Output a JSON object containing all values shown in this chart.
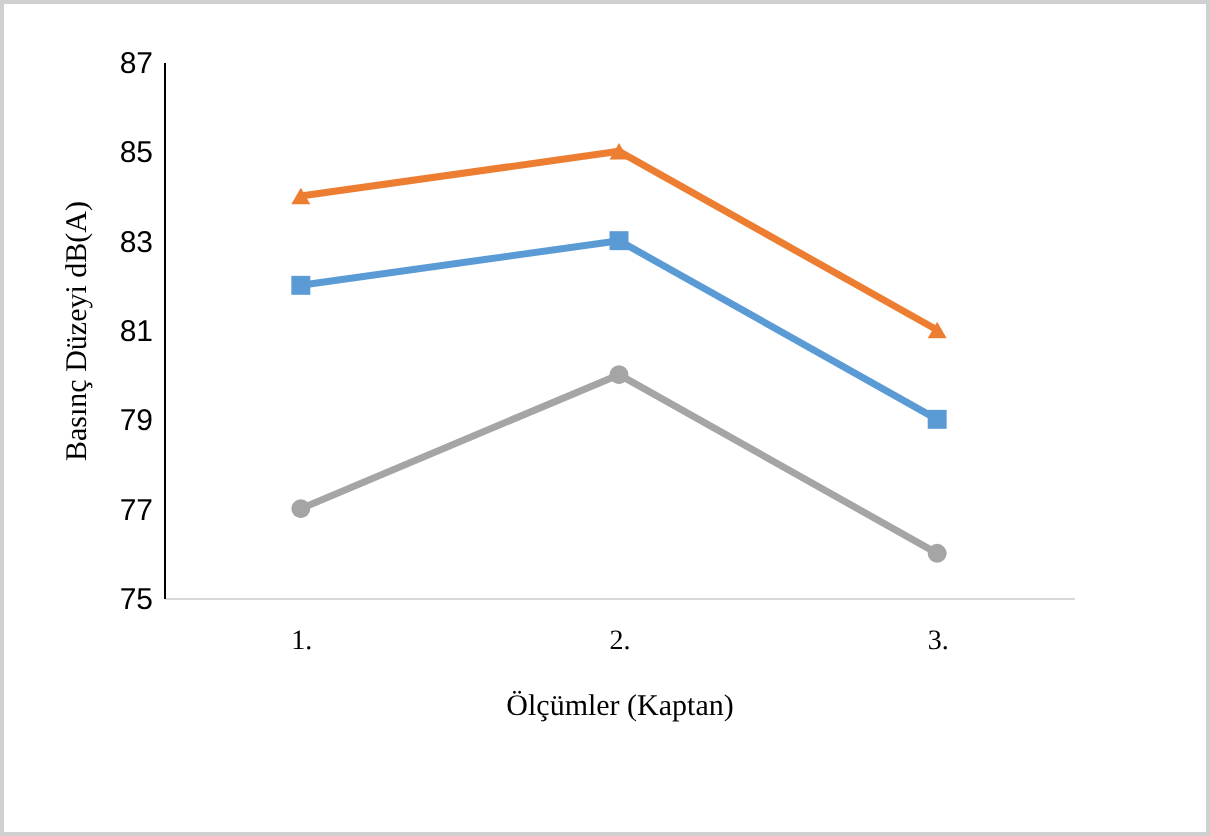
{
  "chart_data": {
    "type": "line",
    "xlabel": "Ölçümler (Kaptan)",
    "ylabel": "Basınç  Düzeyi  dB(A)",
    "categories": [
      "1.",
      "2.",
      "3."
    ],
    "series": [
      {
        "color": "#ed7d31",
        "marker": "triangle",
        "values": [
          84,
          85,
          81
        ]
      },
      {
        "color": "#5b9bd5",
        "marker": "square",
        "values": [
          82,
          83,
          79
        ]
      },
      {
        "color": "#a5a5a5",
        "marker": "circle",
        "values": [
          77,
          80,
          76
        ]
      }
    ],
    "ylim": [
      75,
      87
    ],
    "yticks": [
      75,
      77,
      79,
      81,
      83,
      85,
      87
    ],
    "grid": false
  }
}
